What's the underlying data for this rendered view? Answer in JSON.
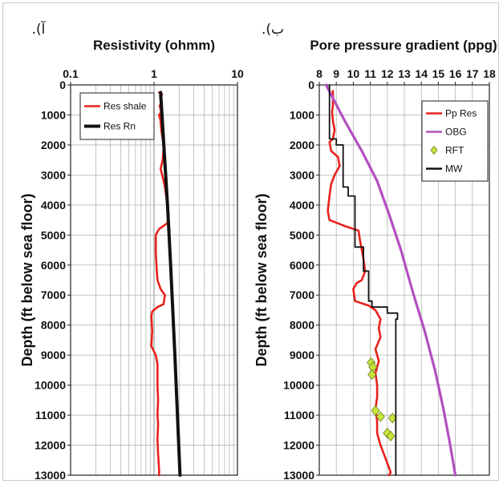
{
  "chart_data": [
    {
      "panel_label": "آ).",
      "type": "line",
      "title": "Resistivity (ohmm)",
      "ylabel": "Depth (ft below sea floor)",
      "x_scale": "log",
      "xlim": [
        0.1,
        10
      ],
      "x_ticks": [
        "0.1",
        "1",
        "10"
      ],
      "ylim": [
        0,
        13000
      ],
      "y_inverted": true,
      "y_ticks": [
        "0",
        "1000",
        "2000",
        "3000",
        "4000",
        "5000",
        "6000",
        "7000",
        "8000",
        "9000",
        "10000",
        "11000",
        "12000",
        "13000"
      ],
      "grid": true,
      "legend_position": "top-left",
      "series": [
        {
          "name": "Res shale",
          "color": "#e8211b",
          "points": [
            [
              1.15,
              250
            ],
            [
              1.25,
              320
            ],
            [
              1.18,
              420
            ],
            [
              1.24,
              550
            ],
            [
              1.17,
              700
            ],
            [
              1.22,
              900
            ],
            [
              1.15,
              1000
            ],
            [
              1.2,
              1200
            ],
            [
              1.22,
              1500
            ],
            [
              1.27,
              1800
            ],
            [
              1.3,
              2100
            ],
            [
              1.27,
              2500
            ],
            [
              1.2,
              2800
            ],
            [
              1.28,
              3100
            ],
            [
              1.35,
              3400
            ],
            [
              1.4,
              3700
            ],
            [
              1.45,
              4100
            ],
            [
              1.5,
              4300
            ],
            [
              1.45,
              4600
            ],
            [
              1.15,
              4800
            ],
            [
              1.05,
              5000
            ],
            [
              1.05,
              5600
            ],
            [
              1.08,
              6200
            ],
            [
              1.1,
              6500
            ],
            [
              1.2,
              6800
            ],
            [
              1.35,
              7000
            ],
            [
              1.3,
              7300
            ],
            [
              1.1,
              7400
            ],
            [
              0.95,
              7550
            ],
            [
              0.93,
              7700
            ],
            [
              0.95,
              8200
            ],
            [
              0.93,
              8700
            ],
            [
              1.05,
              9000
            ],
            [
              1.1,
              9300
            ],
            [
              1.1,
              10000
            ],
            [
              1.12,
              10500
            ],
            [
              1.1,
              11000
            ],
            [
              1.12,
              11300
            ],
            [
              1.1,
              11800
            ],
            [
              1.12,
              12300
            ],
            [
              1.15,
              12800
            ],
            [
              1.15,
              13000
            ]
          ]
        },
        {
          "name": "Res Rn",
          "color": "#111111",
          "points": [
            [
              1.2,
              250
            ],
            [
              1.45,
              4000
            ],
            [
              1.58,
              6000
            ],
            [
              1.78,
              9000
            ],
            [
              2.05,
              13000
            ]
          ]
        }
      ]
    },
    {
      "panel_label": "ب).",
      "type": "line",
      "title": "Pore pressure gradient (ppg)",
      "ylabel": "Depth (ft below sea floor)",
      "xlim": [
        8,
        18
      ],
      "x_ticks": [
        "8",
        "9",
        "10",
        "11",
        "12",
        "13",
        "14",
        "15",
        "16",
        "17",
        "18"
      ],
      "ylim": [
        0,
        13000
      ],
      "y_inverted": true,
      "y_ticks": [
        "0",
        "1000",
        "2000",
        "3000",
        "4000",
        "5000",
        "6000",
        "7000",
        "8000",
        "9000",
        "10000",
        "11000",
        "12000",
        "13000"
      ],
      "grid": true,
      "legend_position": "top-right",
      "series": [
        {
          "name": "Pp Res",
          "color": "#e8211b",
          "points": [
            [
              8.8,
              200
            ],
            [
              8.8,
              700
            ],
            [
              8.75,
              900
            ],
            [
              8.8,
              1200
            ],
            [
              8.9,
              1500
            ],
            [
              8.8,
              1800
            ],
            [
              8.6,
              1900
            ],
            [
              8.7,
              2200
            ],
            [
              9.1,
              2400
            ],
            [
              9.2,
              2700
            ],
            [
              8.9,
              3000
            ],
            [
              8.7,
              3300
            ],
            [
              8.6,
              3700
            ],
            [
              8.5,
              4200
            ],
            [
              8.6,
              4500
            ],
            [
              9.5,
              4700
            ],
            [
              10.3,
              4850
            ],
            [
              10.4,
              5200
            ],
            [
              10.5,
              5500
            ],
            [
              10.6,
              5800
            ],
            [
              10.7,
              6200
            ],
            [
              10.5,
              6500
            ],
            [
              10.2,
              6600
            ],
            [
              10.0,
              6800
            ],
            [
              10.1,
              7200
            ],
            [
              10.9,
              7350
            ],
            [
              11.3,
              7500
            ],
            [
              11.6,
              7800
            ],
            [
              11.5,
              8100
            ],
            [
              11.6,
              8400
            ],
            [
              11.3,
              8800
            ],
            [
              11.5,
              9200
            ],
            [
              11.3,
              9600
            ],
            [
              11.4,
              10000
            ],
            [
              11.4,
              10400
            ],
            [
              11.3,
              10800
            ],
            [
              11.4,
              11200
            ],
            [
              11.4,
              11600
            ],
            [
              11.6,
              12000
            ],
            [
              11.8,
              12300
            ],
            [
              12.0,
              12600
            ],
            [
              12.2,
              12900
            ],
            [
              12.1,
              13000
            ]
          ]
        },
        {
          "name": "OBG",
          "color": "#b24fbf",
          "points": [
            [
              8.4,
              0
            ],
            [
              9.5,
              1200
            ],
            [
              10.5,
              2200
            ],
            [
              11.4,
              3200
            ],
            [
              12.1,
              4300
            ],
            [
              12.8,
              5500
            ],
            [
              13.5,
              6900
            ],
            [
              14.2,
              8200
            ],
            [
              14.8,
              9500
            ],
            [
              15.3,
              10800
            ],
            [
              15.7,
              12000
            ],
            [
              16.0,
              13000
            ]
          ]
        },
        {
          "name": "RFT",
          "color": "#c6e63a",
          "points": [
            [
              11.05,
              9250
            ],
            [
              11.15,
              9400
            ],
            [
              11.1,
              9650
            ],
            [
              11.3,
              10850
            ],
            [
              11.6,
              11050
            ],
            [
              12.3,
              11100
            ],
            [
              12.0,
              11600
            ],
            [
              12.2,
              11700
            ]
          ]
        },
        {
          "name": "MW",
          "color": "#111111",
          "points": [
            [
              8.6,
              0
            ],
            [
              8.6,
              1800
            ],
            [
              9.0,
              1800
            ],
            [
              9.0,
              2000
            ],
            [
              9.4,
              2000
            ],
            [
              9.4,
              2200
            ],
            [
              9.4,
              3400
            ],
            [
              9.7,
              3400
            ],
            [
              9.7,
              3700
            ],
            [
              10.1,
              3700
            ],
            [
              10.1,
              4500
            ],
            [
              10.1,
              5400
            ],
            [
              10.6,
              5400
            ],
            [
              10.6,
              6200
            ],
            [
              10.9,
              6200
            ],
            [
              10.9,
              7200
            ],
            [
              11.1,
              7200
            ],
            [
              11.1,
              7400
            ],
            [
              12.0,
              7400
            ],
            [
              12.0,
              7600
            ],
            [
              12.6,
              7600
            ],
            [
              12.6,
              7800
            ],
            [
              12.5,
              7800
            ],
            [
              12.5,
              13000
            ]
          ]
        }
      ]
    }
  ]
}
